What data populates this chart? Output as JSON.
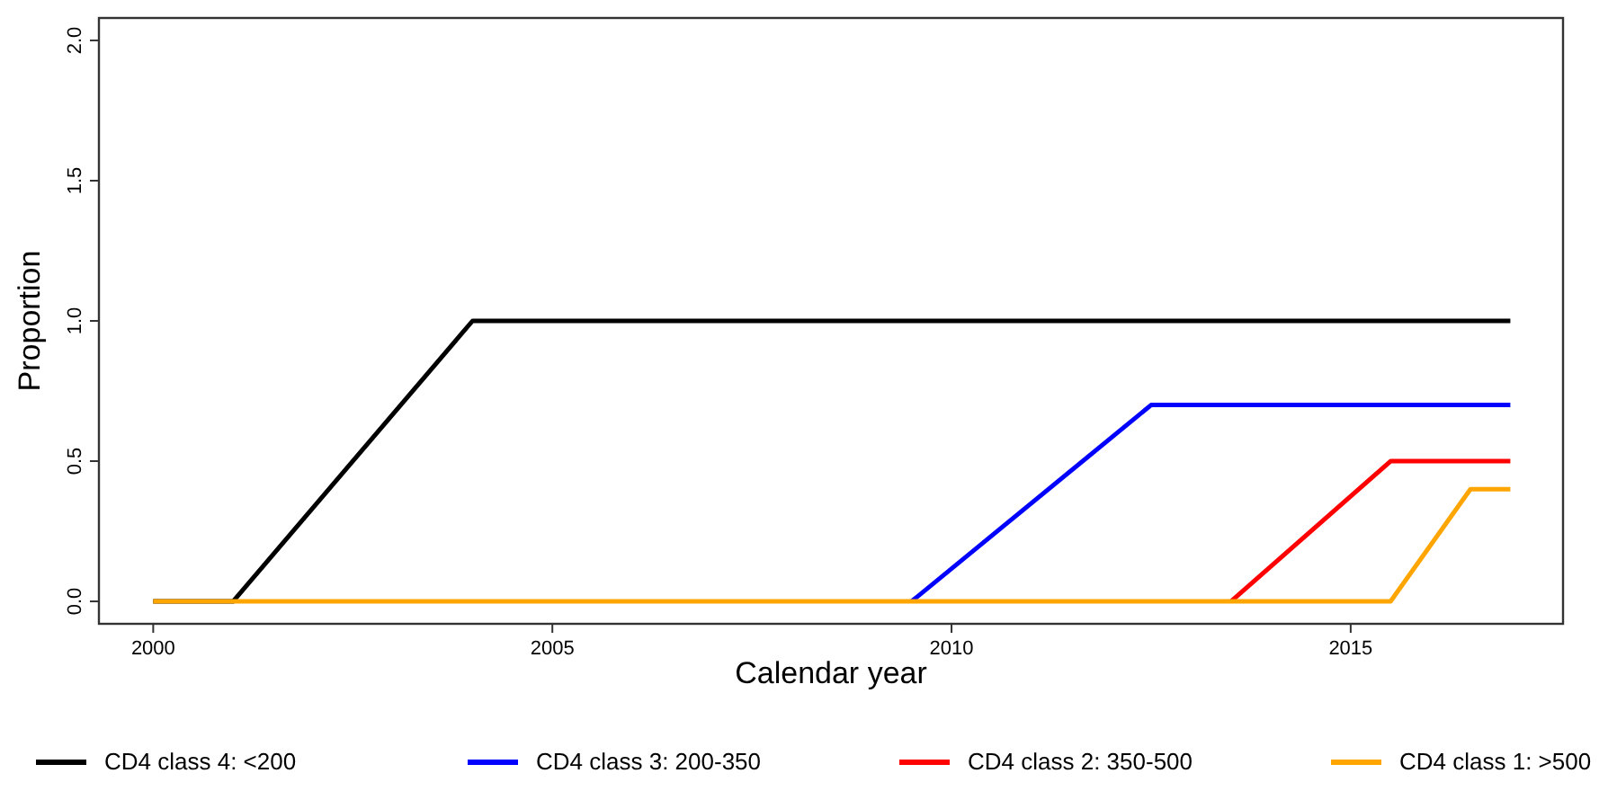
{
  "chart_data": {
    "type": "line",
    "xlabel": "Calendar year",
    "ylabel": "Proportion",
    "xlim": [
      1999.32,
      2017.66
    ],
    "xticks": [
      2000,
      2005,
      2010,
      2015
    ],
    "ylim": [
      -0.08,
      2.08
    ],
    "yticks": [
      {
        "value": 0,
        "label": "0.0"
      },
      {
        "value": 0.5,
        "label": "0.5"
      },
      {
        "value": 1,
        "label": "1.0"
      },
      {
        "value": 1.5,
        "label": "1.5"
      },
      {
        "value": 2,
        "label": "2.0"
      }
    ],
    "grid": false,
    "legend": "bottom",
    "marker": "none",
    "line_style": "solid",
    "series": [
      {
        "name": "CD4 class 4: <200",
        "color": "#000000",
        "x": [
          2000,
          2001,
          2004,
          2017
        ],
        "values": [
          0,
          0,
          1,
          1
        ]
      },
      {
        "name": "CD4 class 3: 200-350",
        "color": "#0000ff",
        "x": [
          2009.5,
          2012.5,
          2017
        ],
        "values": [
          0,
          0.7,
          0.7
        ]
      },
      {
        "name": "CD4 class 2: 350-500",
        "color": "#ff0000",
        "x": [
          2013.5,
          2015.5,
          2017
        ],
        "values": [
          0,
          0.5,
          0.5
        ]
      },
      {
        "name": "CD4 class 1: >500",
        "color": "#ffa500",
        "x": [
          2000,
          2015.5,
          2016.5,
          2017
        ],
        "values": [
          0,
          0,
          0.4,
          0.4
        ]
      }
    ]
  }
}
